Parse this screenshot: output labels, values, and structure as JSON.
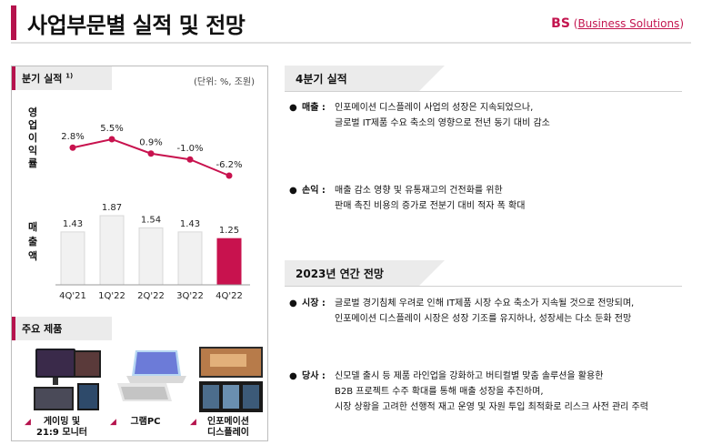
{
  "header": {
    "title": "사업부문별 실적 및 전망",
    "bs_short": "BS",
    "bs_open": "(",
    "bs_full": "Business Solutions",
    "bs_close": ")"
  },
  "quarter_section": {
    "title": "분기 실적",
    "footnote": "1)",
    "unit": "(단위: %, 조원)",
    "op_label": "영업이익률",
    "rev_label": "매출액"
  },
  "chart_data": [
    {
      "type": "line",
      "name": "영업이익률",
      "categories": [
        "4Q'21",
        "1Q'22",
        "2Q'22",
        "3Q'22",
        "4Q'22"
      ],
      "values": [
        2.8,
        5.5,
        0.9,
        -1.0,
        -6.2
      ],
      "value_labels": [
        "2.8%",
        "5.5%",
        "0.9%",
        "-1.0%",
        "-6.2%"
      ],
      "color": "#c8124e"
    },
    {
      "type": "bar",
      "name": "매출액",
      "categories": [
        "4Q'21",
        "1Q'22",
        "2Q'22",
        "3Q'22",
        "4Q'22"
      ],
      "values": [
        1.43,
        1.87,
        1.54,
        1.43,
        1.25
      ],
      "value_labels": [
        "1.43",
        "1.87",
        "1.54",
        "1.43",
        "1.25"
      ],
      "bar_color": "#f1f1f1",
      "highlight_color": "#c8124e"
    }
  ],
  "products_section": {
    "title": "주요 제품",
    "items": [
      {
        "line1": "게이밍 및",
        "line2": "21:9 모니터"
      },
      {
        "line1": "그램PC",
        "line2": ""
      },
      {
        "line1": "인포메이션",
        "line2": "디스플레이"
      }
    ]
  },
  "q4_section": {
    "title": "4분기 실적",
    "bullets": [
      {
        "key": "매출 :",
        "lines": [
          "인포메이션 디스플레이 사업의 성장은 지속되었으나,",
          "글로벌 IT제품 수요 축소의 영향으로 전년 동기 대비 감소"
        ]
      },
      {
        "key": "손익 :",
        "lines": [
          "매출 감소 영향 및 유통재고의 건전화를 위한",
          "판매 촉진 비용의 증가로 전분기 대비 적자 폭 확대"
        ]
      }
    ]
  },
  "outlook_section": {
    "title": "2023년 연간 전망",
    "bullets": [
      {
        "key": "시장 :",
        "lines": [
          "글로벌 경기침체 우려로 인해 IT제품 시장 수요 축소가 지속될 것으로 전망되며,",
          "인포메이션 디스플레이 시장은 성장 기조를 유지하나, 성장세는 다소 둔화 전망"
        ]
      },
      {
        "key": "당사 :",
        "lines": [
          "신모델 출시 등 제품 라인업을 강화하고 버티컬별 맞춤 솔루션을 활용한",
          "B2B 프로젝트 수주 확대를 통해 매출 성장을 추진하며,",
          "시장 상황을 고려한 선행적 재고 운영 및 자원 투입 최적화로 리스크 사전 관리 주력"
        ]
      }
    ]
  }
}
